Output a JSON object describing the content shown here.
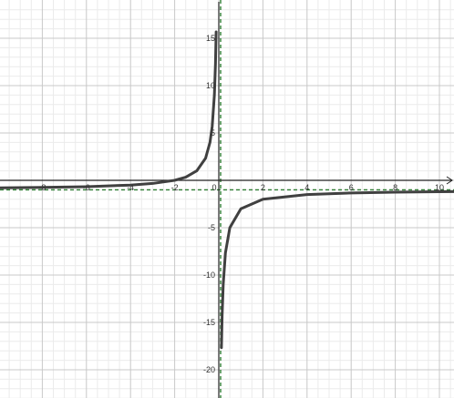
{
  "chart_data": {
    "type": "line",
    "title": "",
    "xlabel": "",
    "ylabel": "",
    "xlim": [
      -10,
      10.8
    ],
    "ylim": [
      -23,
      18.5
    ],
    "grid": true,
    "x_ticks": [
      -8,
      -6,
      -4,
      -2,
      0,
      2,
      4,
      6,
      8,
      10
    ],
    "y_ticks": [
      15,
      10,
      5,
      -5,
      -10,
      -15,
      -20
    ],
    "x_tick_labels": [
      "-8",
      "-6",
      "-4",
      "-2",
      "0",
      "2",
      "4",
      "6",
      "8",
      "10"
    ],
    "y_tick_labels": [
      "15",
      "10",
      "5",
      "-5",
      "-10",
      "-15",
      "-20"
    ],
    "asymptotes": {
      "vertical_x": 0,
      "horizontal_y": -1
    },
    "series": [
      {
        "values_x": [
          -10,
          -8,
          -6,
          -4,
          -3,
          -2,
          -1.5,
          -1,
          -0.6,
          -0.4,
          -0.3,
          -0.2,
          -0.15,
          -0.12,
          0.12,
          0.15,
          0.2,
          0.3,
          0.5,
          1,
          2,
          4,
          6,
          8,
          10,
          10.8
        ],
        "values_y": [
          -0.8,
          -0.75,
          -0.67,
          -0.5,
          -0.33,
          0,
          0.33,
          1,
          2.33,
          4,
          5.67,
          9,
          12.33,
          15.67,
          -17.67,
          -14.33,
          -11,
          -7.67,
          -5,
          -3,
          -2,
          -1.5,
          -1.33,
          -1.25,
          -1.2,
          -1.19
        ],
        "color": "#404040"
      }
    ],
    "colors": {
      "grid_major": "#c8c8c8",
      "grid_minor": "#ebebeb",
      "axis": "#222222",
      "asymptote": "#2e7d32",
      "curve": "#404040"
    }
  }
}
